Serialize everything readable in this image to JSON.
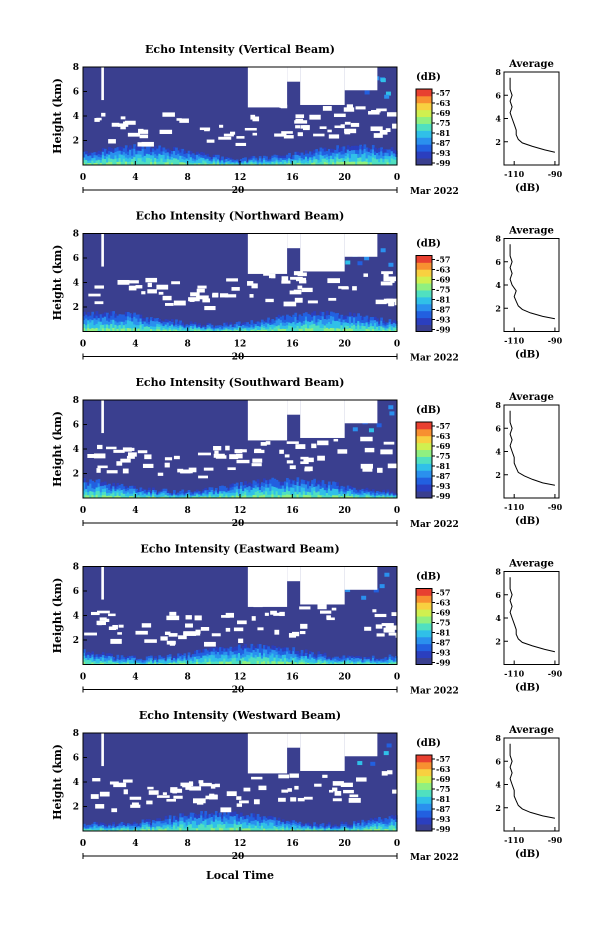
{
  "figure": {
    "xlabel": "Local Time",
    "colorbar_unit": "(dB)",
    "colorbar_ticks": [
      "-57",
      "-63",
      "-69",
      "-75",
      "-81",
      "-87",
      "-93",
      "-99"
    ],
    "date_day": "20",
    "date_month": "Mar 2022",
    "profile_title": "Average",
    "profile_xlabel": "(dB)",
    "colormap": [
      "#3a3f8f",
      "#2b3fbf",
      "#2260e0",
      "#2a90ee",
      "#30c0e8",
      "#50e0c0",
      "#90f080",
      "#d0f050",
      "#f8d040",
      "#f89030",
      "#e84030"
    ]
  },
  "chart_data": [
    {
      "type": "heatmap",
      "title": "Echo Intensity (Vertical Beam)",
      "xlabel": "Local Time",
      "ylabel": "Height (km)",
      "xlim": [
        0,
        24
      ],
      "ylim": [
        0,
        8
      ],
      "xticks": [
        "0",
        "4",
        "8",
        "12",
        "16",
        "20",
        "0"
      ],
      "yticks": [
        "2",
        "4",
        "6",
        "8"
      ],
      "clim": [
        -99,
        -57
      ],
      "z_unit": "dB",
      "profile": {
        "title": "Average",
        "xlabel": "(dB)",
        "xticks": [
          "-110",
          "-90"
        ],
        "yticks": [
          "2",
          "4",
          "6",
          "8"
        ],
        "xlim": [
          -115,
          -88
        ],
        "ylim": [
          0,
          8
        ],
        "height": [
          1.1,
          1.3,
          1.6,
          1.9,
          2.2,
          2.6,
          3.0,
          3.5,
          4.0,
          4.5,
          5.0,
          5.5,
          6.0,
          6.5,
          7.0,
          7.5
        ],
        "value": [
          -90,
          -95,
          -101,
          -106,
          -108,
          -109,
          -109,
          -110,
          -111,
          -112,
          -111,
          -112,
          -111,
          -112,
          -112,
          -112
        ]
      }
    },
    {
      "type": "heatmap",
      "title": "Echo Intensity (Northward Beam)",
      "xlabel": "Local Time",
      "ylabel": "Height (km)",
      "xlim": [
        0,
        24
      ],
      "ylim": [
        0,
        8
      ],
      "xticks": [
        "0",
        "4",
        "8",
        "12",
        "16",
        "20",
        "0"
      ],
      "yticks": [
        "2",
        "4",
        "6",
        "8"
      ],
      "clim": [
        -99,
        -57
      ],
      "z_unit": "dB",
      "profile": {
        "title": "Average",
        "xlabel": "(dB)",
        "xticks": [
          "-110",
          "-90"
        ],
        "yticks": [
          "2",
          "4",
          "6",
          "8"
        ],
        "xlim": [
          -115,
          -88
        ],
        "ylim": [
          0,
          8
        ],
        "height": [
          1.1,
          1.3,
          1.6,
          1.9,
          2.2,
          2.6,
          3.0,
          3.5,
          4.0,
          4.5,
          5.0,
          5.5,
          6.0,
          6.5,
          7.0,
          7.5
        ],
        "value": [
          -90,
          -96,
          -102,
          -106,
          -108,
          -109,
          -110,
          -109,
          -111,
          -112,
          -111,
          -112,
          -111,
          -112,
          -112,
          -112
        ]
      }
    },
    {
      "type": "heatmap",
      "title": "Echo Intensity (Southward Beam)",
      "xlabel": "Local Time",
      "ylabel": "Height (km)",
      "xlim": [
        0,
        24
      ],
      "ylim": [
        0,
        8
      ],
      "xticks": [
        "0",
        "4",
        "8",
        "12",
        "16",
        "20",
        "0"
      ],
      "yticks": [
        "2",
        "4",
        "6",
        "8"
      ],
      "clim": [
        -99,
        -57
      ],
      "z_unit": "dB",
      "profile": {
        "title": "Average",
        "xlabel": "(dB)",
        "xticks": [
          "-110",
          "-90"
        ],
        "yticks": [
          "2",
          "4",
          "6",
          "8"
        ],
        "xlim": [
          -115,
          -88
        ],
        "ylim": [
          0,
          8
        ],
        "height": [
          1.1,
          1.3,
          1.6,
          1.9,
          2.2,
          2.6,
          3.0,
          3.5,
          4.0,
          4.5,
          5.0,
          5.5,
          6.0,
          6.5,
          7.0,
          7.5
        ],
        "value": [
          -90,
          -96,
          -101,
          -105,
          -108,
          -109,
          -110,
          -110,
          -111,
          -112,
          -111,
          -112,
          -111,
          -112,
          -112,
          -112
        ]
      }
    },
    {
      "type": "heatmap",
      "title": "Echo Intensity (Eastward Beam)",
      "xlabel": "Local Time",
      "ylabel": "Height (km)",
      "xlim": [
        0,
        24
      ],
      "ylim": [
        0,
        8
      ],
      "xticks": [
        "0",
        "4",
        "8",
        "12",
        "16",
        "20",
        "0"
      ],
      "yticks": [
        "2",
        "4",
        "6",
        "8"
      ],
      "clim": [
        -99,
        -57
      ],
      "z_unit": "dB",
      "profile": {
        "title": "Average",
        "xlabel": "(dB)",
        "xticks": [
          "-110",
          "-90"
        ],
        "yticks": [
          "2",
          "4",
          "6",
          "8"
        ],
        "xlim": [
          -115,
          -88
        ],
        "ylim": [
          0,
          8
        ],
        "height": [
          1.1,
          1.3,
          1.6,
          1.9,
          2.2,
          2.6,
          3.0,
          3.5,
          4.0,
          4.5,
          5.0,
          5.5,
          6.0,
          6.5,
          7.0,
          7.5
        ],
        "value": [
          -90,
          -95,
          -101,
          -106,
          -108,
          -109,
          -109,
          -110,
          -111,
          -112,
          -111,
          -112,
          -111,
          -112,
          -112,
          -112
        ]
      }
    },
    {
      "type": "heatmap",
      "title": "Echo Intensity (Westward Beam)",
      "xlabel": "Local Time",
      "ylabel": "Height (km)",
      "xlim": [
        0,
        24
      ],
      "ylim": [
        0,
        8
      ],
      "xticks": [
        "0",
        "4",
        "8",
        "12",
        "16",
        "20",
        "0"
      ],
      "yticks": [
        "2",
        "4",
        "6",
        "8"
      ],
      "clim": [
        -99,
        -57
      ],
      "z_unit": "dB",
      "profile": {
        "title": "Average",
        "xlabel": "(dB)",
        "xticks": [
          "-110",
          "-90"
        ],
        "yticks": [
          "2",
          "4",
          "6",
          "8"
        ],
        "xlim": [
          -115,
          -88
        ],
        "ylim": [
          0,
          8
        ],
        "height": [
          1.1,
          1.3,
          1.6,
          1.9,
          2.2,
          2.6,
          3.0,
          3.5,
          4.0,
          4.5,
          5.0,
          5.5,
          6.0,
          6.5,
          7.0,
          7.5
        ],
        "value": [
          -90,
          -96,
          -102,
          -106,
          -108,
          -109,
          -110,
          -110,
          -111,
          -112,
          -111,
          -112,
          -111,
          -112,
          -112,
          -112
        ]
      }
    }
  ]
}
